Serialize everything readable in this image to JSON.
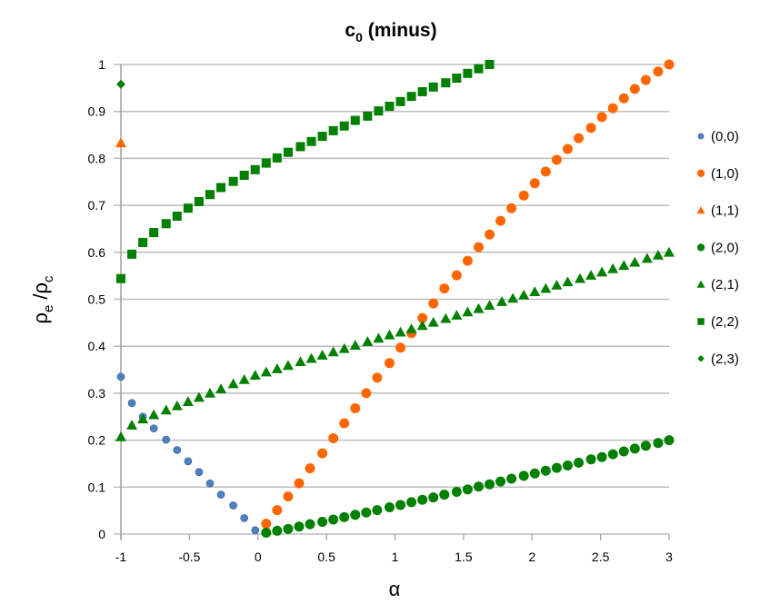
{
  "chart_data": {
    "type": "scatter",
    "title": "c",
    "title_sub": "0",
    "title_rest": " (minus)",
    "xlabel": "α",
    "ylabel_main1": "ρ",
    "ylabel_sub1": "e",
    "ylabel_main2": " /ρ",
    "ylabel_sub2": "c",
    "xlim": [
      -1,
      3
    ],
    "ylim": [
      0,
      1
    ],
    "xticks": [
      -1,
      -0.5,
      0,
      0.5,
      1,
      1.5,
      2,
      2.5,
      3
    ],
    "xtick_labels": [
      "-1",
      "-0.5",
      "0",
      "0.5",
      "1",
      "1.5",
      "2",
      "2.5",
      "3"
    ],
    "yticks": [
      0,
      0.1,
      0.2,
      0.3,
      0.4,
      0.5,
      0.6,
      0.7,
      0.8,
      0.9,
      1
    ],
    "ytick_labels": [
      "0",
      "0.1",
      "0.2",
      "0.3",
      "0.4",
      "0.5",
      "0.6",
      "0.7",
      "0.8",
      "0.9",
      "1"
    ],
    "grid": "horizontal",
    "legend_placement": "right",
    "series": [
      {
        "name": "(0,0)",
        "marker": "circle-small",
        "color": "#4f81bd",
        "x": [
          -1,
          -0.92,
          -0.84,
          -0.76,
          -0.67,
          -0.59,
          -0.51,
          -0.43,
          -0.35,
          -0.27,
          -0.18,
          -0.1,
          -0.02
        ],
        "y": [
          0.335,
          0.279,
          0.25,
          0.225,
          0.201,
          0.179,
          0.155,
          0.132,
          0.108,
          0.084,
          0.061,
          0.034,
          0.008
        ]
      },
      {
        "name": "(1,0)",
        "marker": "circle",
        "color": "#ff6600",
        "x": [
          0.06,
          0.14,
          0.22,
          0.3,
          0.38,
          0.47,
          0.55,
          0.63,
          0.71,
          0.79,
          0.87,
          0.96,
          1.04,
          1.12,
          1.2,
          1.28,
          1.36,
          1.45,
          1.53,
          1.61,
          1.69,
          1.77,
          1.85,
          1.94,
          2.02,
          2.1,
          2.18,
          2.26,
          2.34,
          2.43,
          2.51,
          2.59,
          2.67,
          2.75,
          2.83,
          2.92,
          3.0
        ],
        "y": [
          0.022,
          0.051,
          0.08,
          0.108,
          0.14,
          0.172,
          0.204,
          0.236,
          0.268,
          0.3,
          0.333,
          0.364,
          0.397,
          0.428,
          0.46,
          0.491,
          0.523,
          0.551,
          0.582,
          0.611,
          0.638,
          0.667,
          0.694,
          0.721,
          0.747,
          0.772,
          0.797,
          0.82,
          0.843,
          0.865,
          0.888,
          0.907,
          0.928,
          0.948,
          0.967,
          0.985,
          1.0
        ]
      },
      {
        "name": "(1,1)",
        "marker": "triangle",
        "color": "#ff6600",
        "x": [
          -1
        ],
        "y": [
          0.833
        ]
      },
      {
        "name": "(2,0)",
        "marker": "circle",
        "color": "#008000",
        "x": [
          0.06,
          0.14,
          0.22,
          0.3,
          0.38,
          0.47,
          0.55,
          0.63,
          0.71,
          0.79,
          0.87,
          0.96,
          1.04,
          1.12,
          1.2,
          1.28,
          1.36,
          1.45,
          1.53,
          1.61,
          1.69,
          1.77,
          1.85,
          1.94,
          2.02,
          2.1,
          2.18,
          2.26,
          2.34,
          2.43,
          2.51,
          2.59,
          2.67,
          2.75,
          2.83,
          2.92,
          3.0
        ],
        "y": [
          0.003,
          0.007,
          0.011,
          0.016,
          0.021,
          0.026,
          0.031,
          0.036,
          0.041,
          0.046,
          0.051,
          0.057,
          0.062,
          0.068,
          0.073,
          0.078,
          0.084,
          0.09,
          0.095,
          0.101,
          0.106,
          0.112,
          0.118,
          0.124,
          0.129,
          0.135,
          0.141,
          0.146,
          0.152,
          0.159,
          0.164,
          0.17,
          0.176,
          0.182,
          0.188,
          0.194,
          0.2
        ]
      },
      {
        "name": "(2,1)",
        "marker": "triangle",
        "color": "#008000",
        "x": [
          -1,
          -0.92,
          -0.84,
          -0.76,
          -0.67,
          -0.59,
          -0.51,
          -0.43,
          -0.35,
          -0.27,
          -0.18,
          -0.1,
          -0.02,
          0.06,
          0.14,
          0.22,
          0.31,
          0.39,
          0.47,
          0.55,
          0.63,
          0.71,
          0.8,
          0.88,
          0.96,
          1.04,
          1.12,
          1.2,
          1.28,
          1.37,
          1.45,
          1.53,
          1.61,
          1.69,
          1.78,
          1.86,
          1.94,
          2.02,
          2.1,
          2.18,
          2.26,
          2.35,
          2.43,
          2.51,
          2.59,
          2.67,
          2.75,
          2.84,
          2.92,
          3.0
        ],
        "y": [
          0.207,
          0.232,
          0.245,
          0.254,
          0.264,
          0.273,
          0.282,
          0.291,
          0.3,
          0.309,
          0.32,
          0.329,
          0.338,
          0.345,
          0.352,
          0.359,
          0.367,
          0.374,
          0.381,
          0.388,
          0.395,
          0.402,
          0.41,
          0.417,
          0.424,
          0.43,
          0.437,
          0.444,
          0.451,
          0.459,
          0.466,
          0.473,
          0.48,
          0.487,
          0.495,
          0.502,
          0.509,
          0.516,
          0.523,
          0.53,
          0.537,
          0.544,
          0.551,
          0.558,
          0.565,
          0.572,
          0.579,
          0.587,
          0.594,
          0.6
        ]
      },
      {
        "name": "(2,2)",
        "marker": "square",
        "color": "#008000",
        "x": [
          -1,
          -0.92,
          -0.84,
          -0.76,
          -0.67,
          -0.59,
          -0.51,
          -0.43,
          -0.35,
          -0.27,
          -0.18,
          -0.1,
          -0.02,
          0.06,
          0.14,
          0.22,
          0.31,
          0.39,
          0.47,
          0.55,
          0.63,
          0.71,
          0.8,
          0.88,
          0.96,
          1.04,
          1.12,
          1.2,
          1.28,
          1.37,
          1.45,
          1.53,
          1.61,
          1.69
        ],
        "y": [
          0.544,
          0.596,
          0.621,
          0.642,
          0.661,
          0.677,
          0.694,
          0.708,
          0.723,
          0.738,
          0.751,
          0.764,
          0.776,
          0.79,
          0.801,
          0.813,
          0.825,
          0.836,
          0.847,
          0.859,
          0.869,
          0.881,
          0.89,
          0.901,
          0.911,
          0.921,
          0.932,
          0.942,
          0.952,
          0.961,
          0.971,
          0.981,
          0.991,
          1.0
        ]
      },
      {
        "name": "(2,3)",
        "marker": "diamond",
        "color": "#008000",
        "x": [
          -1
        ],
        "y": [
          0.958
        ]
      }
    ]
  }
}
